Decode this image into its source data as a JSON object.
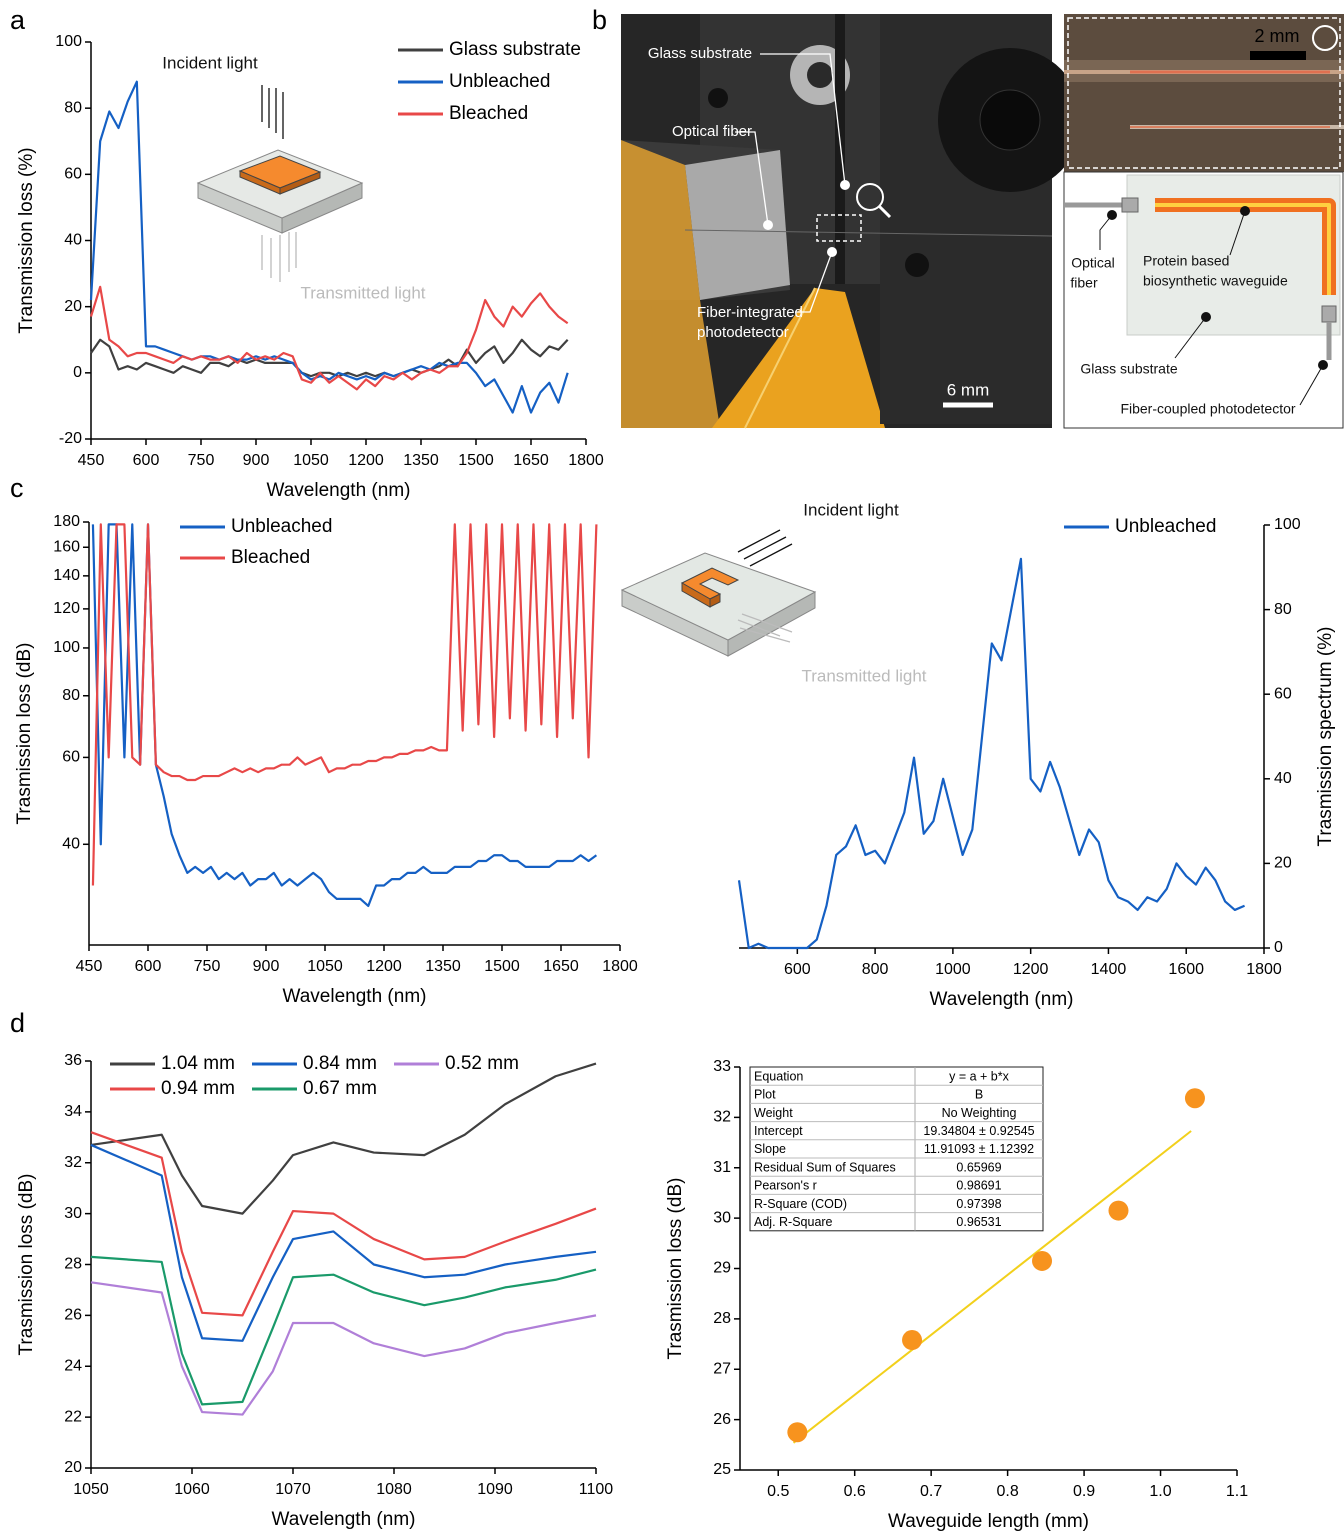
{
  "panel_labels": [
    "a",
    "b",
    "c",
    "d"
  ],
  "photo": {
    "annotations": [
      {
        "lines": [
          "Glass substrate"
        ]
      },
      {
        "lines": [
          "Optical fiber"
        ]
      },
      {
        "lines": [
          "Fiber-integrated",
          "photodetector"
        ]
      }
    ],
    "scale_bar": "6 mm",
    "inset_scale_bar": "2 mm"
  },
  "schematic": {
    "labels": [
      {
        "lines": [
          "Optical",
          "fiber"
        ]
      },
      {
        "lines": [
          "Protein based",
          "biosynthetic waveguide"
        ]
      },
      {
        "lines": [
          "Glass substrate"
        ]
      },
      {
        "lines": [
          "Fiber-coupled photodetector"
        ]
      }
    ]
  },
  "chart_data": [
    {
      "type": "line",
      "x_label": "Wavelength (nm)",
      "y_label": "Transmission loss (%)",
      "annotations": [
        "Incident light",
        "Transmitted light"
      ],
      "xlim": [
        450,
        1800
      ],
      "xticks": [
        450,
        600,
        750,
        900,
        1050,
        1200,
        1350,
        1500,
        1650,
        1800
      ],
      "ylim": [
        -20,
        100
      ],
      "yticks": [
        -20,
        0,
        20,
        40,
        60,
        80,
        100
      ],
      "legend": "upper right",
      "x": [
        450,
        475,
        500,
        525,
        550,
        575,
        600,
        625,
        650,
        675,
        700,
        725,
        750,
        775,
        800,
        825,
        850,
        875,
        900,
        925,
        950,
        975,
        1000,
        1025,
        1050,
        1075,
        1100,
        1125,
        1150,
        1175,
        1200,
        1225,
        1250,
        1275,
        1300,
        1325,
        1350,
        1375,
        1400,
        1425,
        1450,
        1475,
        1500,
        1525,
        1550,
        1575,
        1600,
        1625,
        1650,
        1675,
        1700,
        1725,
        1750
      ],
      "series": [
        {
          "name": "Glass substrate",
          "color": "#404040",
          "values": [
            6,
            10,
            8,
            1,
            2,
            1,
            3,
            2,
            1,
            0,
            2,
            1,
            0,
            3,
            3,
            2,
            4,
            3,
            4,
            3,
            3,
            3,
            3,
            0,
            -1,
            0,
            0,
            -1,
            0,
            -1,
            0,
            -1,
            0,
            -1,
            0,
            1,
            0,
            1,
            2,
            4,
            2,
            7,
            3,
            6,
            8,
            3,
            6,
            10,
            7,
            5,
            8,
            7,
            10
          ]
        },
        {
          "name": "Unbleached",
          "color": "#1560c4",
          "values": [
            22,
            70,
            79,
            74,
            82,
            88,
            8,
            8,
            7,
            6,
            5,
            4,
            5,
            5,
            4,
            5,
            4,
            4,
            5,
            4,
            5,
            4,
            3,
            0,
            -2,
            -1,
            -2,
            0,
            -1,
            -2,
            -1,
            -2,
            0,
            -1,
            0,
            1,
            2,
            1,
            3,
            2,
            3,
            3,
            0,
            -4,
            -2,
            -7,
            -12,
            -4,
            -12,
            -6,
            -3,
            -9,
            0
          ]
        },
        {
          "name": "Bleached",
          "color": "#e84848",
          "values": [
            17,
            26,
            10,
            8,
            5,
            6,
            6,
            5,
            4,
            3,
            5,
            4,
            5,
            4,
            4,
            5,
            3,
            6,
            4,
            5,
            4,
            6,
            5,
            -2,
            -3,
            0,
            -3,
            -1,
            -3,
            -5,
            -2,
            -4,
            -1,
            -2,
            0,
            -2,
            0,
            1,
            0,
            2,
            2,
            6,
            13,
            22,
            17,
            14,
            20,
            17,
            21,
            24,
            20,
            17,
            15
          ]
        }
      ]
    },
    {
      "type": "line",
      "x_label": "Wavelength (nm)",
      "y_label": "Trasmission loss (dB)",
      "log_y": true,
      "xlim": [
        450,
        1800
      ],
      "xticks": [
        450,
        600,
        750,
        900,
        1050,
        1200,
        1350,
        1500,
        1650,
        1800
      ],
      "ylim": [
        25,
        180
      ],
      "yticks": [
        40,
        60,
        80,
        100,
        120,
        140,
        160,
        180
      ],
      "legend": "upper left",
      "x": [
        460,
        480,
        500,
        520,
        540,
        560,
        580,
        600,
        620,
        640,
        660,
        680,
        700,
        720,
        740,
        760,
        780,
        800,
        820,
        840,
        860,
        880,
        900,
        920,
        940,
        960,
        980,
        1000,
        1020,
        1040,
        1060,
        1080,
        1100,
        1120,
        1140,
        1160,
        1180,
        1200,
        1220,
        1240,
        1260,
        1280,
        1300,
        1320,
        1340,
        1360,
        1380,
        1400,
        1420,
        1440,
        1460,
        1480,
        1500,
        1520,
        1540,
        1560,
        1580,
        1600,
        1620,
        1640,
        1660,
        1680,
        1700,
        1720,
        1740
      ],
      "series": [
        {
          "name": "Unbleached",
          "color": "#1560c4",
          "values": [
            178,
            40,
            178,
            178,
            60,
            178,
            58,
            178,
            58,
            50,
            42,
            38,
            35,
            36,
            35,
            36,
            34,
            35,
            34,
            35,
            33,
            34,
            34,
            35,
            33,
            34,
            33,
            34,
            35,
            34,
            32,
            31,
            31,
            31,
            31,
            30,
            33,
            33,
            34,
            34,
            35,
            35,
            36,
            35,
            35,
            35,
            36,
            36,
            36,
            37,
            37,
            38,
            38,
            37,
            37,
            36,
            36,
            36,
            36,
            37,
            37,
            37,
            38,
            37,
            38
          ]
        },
        {
          "name": "Bleached",
          "color": "#e84848",
          "values": [
            33,
            178,
            60,
            178,
            178,
            60,
            58,
            178,
            58,
            56,
            55,
            55,
            54,
            54,
            55,
            55,
            55,
            56,
            57,
            56,
            57,
            56,
            57,
            57,
            58,
            58,
            60,
            58,
            59,
            60,
            56,
            57,
            57,
            58,
            58,
            59,
            59,
            60,
            60,
            61,
            61,
            62,
            62,
            63,
            62,
            62,
            178,
            68,
            178,
            70,
            178,
            66,
            178,
            72,
            178,
            68,
            178,
            70,
            178,
            66,
            178,
            72,
            178,
            60,
            178
          ]
        }
      ]
    },
    {
      "type": "line",
      "x_label": "Wavelength (nm)",
      "y_label": "Trasmission spectrum (%)",
      "y_axis": "right",
      "annotations": [
        "Incident light",
        "Transmitted light"
      ],
      "xlim": [
        450,
        1800
      ],
      "xticks": [
        600,
        800,
        1000,
        1200,
        1400,
        1600,
        1800
      ],
      "ylim": [
        0,
        100
      ],
      "yticks": [
        0,
        20,
        40,
        60,
        80,
        100
      ],
      "legend": "upper right",
      "x": [
        450,
        475,
        500,
        525,
        550,
        575,
        600,
        625,
        650,
        675,
        700,
        725,
        750,
        775,
        800,
        825,
        850,
        875,
        900,
        925,
        950,
        975,
        1000,
        1025,
        1050,
        1075,
        1100,
        1125,
        1150,
        1175,
        1200,
        1225,
        1250,
        1275,
        1300,
        1325,
        1350,
        1375,
        1400,
        1425,
        1450,
        1475,
        1500,
        1525,
        1550,
        1575,
        1600,
        1625,
        1650,
        1675,
        1700,
        1725,
        1750
      ],
      "series": [
        {
          "name": "Unbleached",
          "color": "#1560c4",
          "values": [
            16,
            0,
            1,
            0,
            0,
            0,
            0,
            0,
            2,
            10,
            22,
            24,
            29,
            22,
            23,
            20,
            26,
            32,
            45,
            27,
            30,
            40,
            31,
            22,
            28,
            50,
            72,
            68,
            80,
            92,
            40,
            37,
            44,
            38,
            30,
            22,
            28,
            25,
            16,
            12,
            11,
            9,
            12,
            11,
            14,
            20,
            17,
            15,
            19,
            16,
            11,
            9,
            10
          ]
        }
      ]
    },
    {
      "type": "line",
      "x_label": "Wavelength (nm)",
      "y_label": "Trasmission loss (dB)",
      "xlim": [
        1050,
        1100
      ],
      "xticks": [
        1050,
        1060,
        1070,
        1080,
        1090,
        1100
      ],
      "ylim": [
        20,
        36
      ],
      "yticks": [
        20,
        22,
        24,
        26,
        28,
        30,
        32,
        34,
        36
      ],
      "legend": "top",
      "x": [
        1050,
        1057,
        1059,
        1061,
        1065,
        1068,
        1070,
        1074,
        1078,
        1083,
        1087,
        1091,
        1096,
        1100
      ],
      "series": [
        {
          "name": "1.04 mm",
          "color": "#404040",
          "values": [
            32.7,
            33.1,
            31.5,
            30.3,
            30.0,
            31.3,
            32.3,
            32.8,
            32.4,
            32.3,
            33.1,
            34.3,
            35.4,
            35.9
          ]
        },
        {
          "name": "0.84 mm",
          "color": "#1560c4",
          "values": [
            32.7,
            31.5,
            27.5,
            25.1,
            25.0,
            27.5,
            29.0,
            29.3,
            28.0,
            27.5,
            27.6,
            28.0,
            28.3,
            28.5
          ]
        },
        {
          "name": "0.52 mm",
          "color": "#b07fd8",
          "values": [
            27.3,
            26.9,
            24.0,
            22.2,
            22.1,
            23.8,
            25.7,
            25.7,
            24.9,
            24.4,
            24.7,
            25.3,
            25.7,
            26.0
          ]
        },
        {
          "name": "0.94 mm",
          "color": "#e84848",
          "values": [
            33.2,
            32.2,
            28.5,
            26.1,
            26.0,
            28.5,
            30.1,
            30.0,
            29.0,
            28.2,
            28.3,
            28.9,
            29.6,
            30.2
          ]
        },
        {
          "name": "0.67 mm",
          "color": "#1a9a6a",
          "values": [
            28.3,
            28.1,
            24.5,
            22.5,
            22.6,
            25.5,
            27.5,
            27.6,
            26.9,
            26.4,
            26.7,
            27.1,
            27.4,
            27.8
          ]
        }
      ]
    },
    {
      "type": "scatter",
      "x_label": "Waveguide length (mm)",
      "y_label": "Trasmission loss (dB)",
      "xlim": [
        0.45,
        1.1
      ],
      "xticks": [
        0.5,
        0.6,
        0.7,
        0.8,
        0.9,
        {
          "value": 1,
          "label": "1.0"
        },
        1.1
      ],
      "ylim": [
        25,
        33
      ],
      "yticks": [
        25,
        26,
        27,
        28,
        29,
        30,
        31,
        32,
        33
      ],
      "color": "#f7931e",
      "x": [
        0.525,
        0.675,
        0.845,
        0.945,
        1.045
      ],
      "values": [
        25.75,
        27.58,
        29.15,
        30.15,
        32.38
      ],
      "fit": {
        "color": "#f2d01c",
        "x": [
          0.52,
          1.04
        ],
        "values": [
          25.54,
          31.73
        ]
      },
      "table": {
        "rows": [
          [
            "Equation",
            "y = a + b*x"
          ],
          [
            "Plot",
            "B"
          ],
          [
            "Weight",
            "No Weighting"
          ],
          [
            "Intercept",
            "19.34804 ± 0.92545"
          ],
          [
            "Slope",
            "11.91093 ± 1.12392"
          ],
          [
            "Residual Sum of Squares",
            "0.65969"
          ],
          [
            "Pearson's r",
            "0.98691"
          ],
          [
            "R-Square (COD)",
            "0.97398"
          ],
          [
            "Adj. R-Square",
            "0.96531"
          ]
        ]
      }
    }
  ]
}
